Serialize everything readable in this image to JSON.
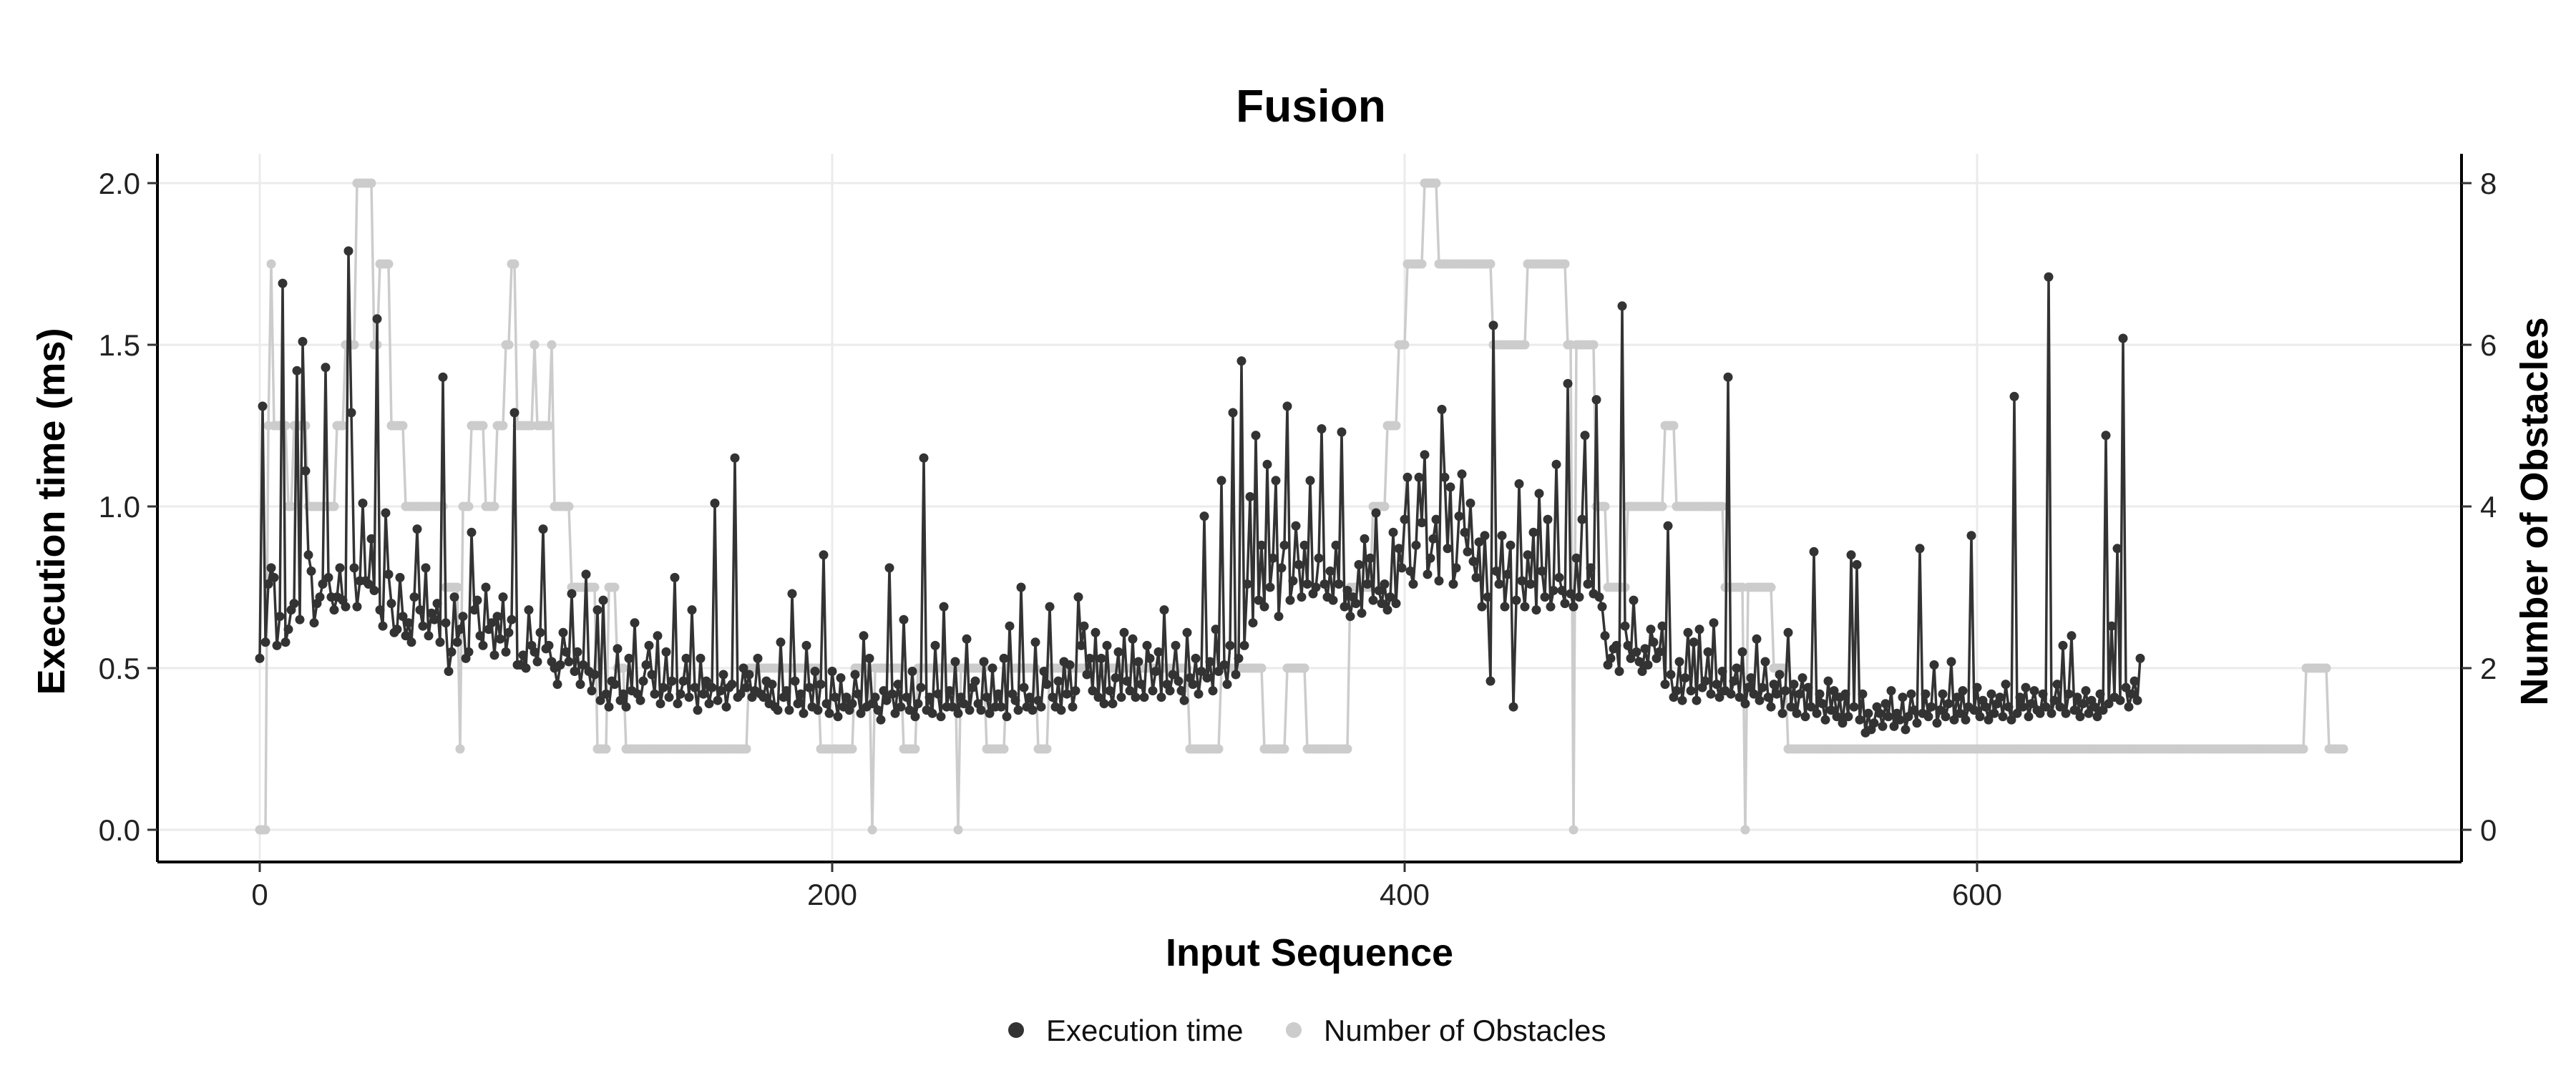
{
  "chart_data": {
    "type": "line",
    "title": "Fusion",
    "xlabel": "Input Sequence",
    "ylabel": "Execution time (ms)",
    "y2label": "Number of Obstacles",
    "xlim": [
      0,
      733
    ],
    "ylim": [
      0,
      2.0
    ],
    "y2lim": [
      0,
      8
    ],
    "x_ticks": [
      0,
      200,
      400,
      600
    ],
    "y_ticks": [
      0.0,
      0.5,
      1.0,
      1.5,
      2.0
    ],
    "y_tick_labels": [
      "0.0",
      "0.5",
      "1.0",
      "1.5",
      "2.0"
    ],
    "y2_ticks": [
      0,
      2,
      4,
      6,
      8
    ],
    "grid": true,
    "legend_position": "bottom",
    "colors": {
      "execution_time": "#333333",
      "obstacles": "#cccccc",
      "grid": "#ebebeb",
      "axis": "#000000"
    },
    "series": [
      {
        "name": "Execution time",
        "axis": "left",
        "x_start": 0,
        "x_step": 1,
        "values": [
          0.53,
          1.31,
          0.58,
          0.76,
          0.81,
          0.78,
          0.57,
          0.66,
          1.69,
          0.58,
          0.62,
          0.68,
          0.7,
          1.42,
          0.65,
          1.51,
          1.11,
          0.85,
          0.8,
          0.64,
          0.7,
          0.72,
          0.76,
          1.43,
          0.78,
          0.72,
          0.68,
          0.72,
          0.81,
          0.71,
          0.69,
          1.79,
          1.29,
          0.81,
          0.69,
          0.77,
          1.01,
          0.77,
          0.76,
          0.9,
          0.74,
          1.58,
          0.68,
          0.63,
          0.98,
          0.79,
          0.7,
          0.61,
          0.62,
          0.78,
          0.66,
          0.6,
          0.64,
          0.58,
          0.72,
          0.93,
          0.68,
          0.63,
          0.81,
          0.6,
          0.67,
          0.65,
          0.7,
          0.58,
          1.4,
          0.64,
          0.49,
          0.55,
          0.72,
          0.58,
          0.62,
          0.66,
          0.53,
          0.55,
          0.92,
          0.68,
          0.71,
          0.6,
          0.57,
          0.75,
          0.62,
          0.64,
          0.54,
          0.66,
          0.59,
          0.72,
          0.55,
          0.61,
          0.65,
          1.29,
          0.51,
          0.51,
          0.54,
          0.5,
          0.68,
          0.57,
          0.55,
          0.52,
          0.61,
          0.93,
          0.56,
          0.57,
          0.52,
          0.5,
          0.45,
          0.51,
          0.61,
          0.55,
          0.52,
          0.73,
          0.49,
          0.55,
          0.45,
          0.51,
          0.79,
          0.49,
          0.43,
          0.48,
          0.68,
          0.4,
          0.71,
          0.42,
          0.38,
          0.46,
          0.45,
          0.56,
          0.4,
          0.42,
          0.38,
          0.53,
          0.43,
          0.64,
          0.42,
          0.4,
          0.46,
          0.51,
          0.57,
          0.48,
          0.42,
          0.6,
          0.39,
          0.44,
          0.55,
          0.41,
          0.46,
          0.78,
          0.39,
          0.42,
          0.46,
          0.53,
          0.41,
          0.68,
          0.44,
          0.37,
          0.53,
          0.42,
          0.46,
          0.39,
          0.44,
          1.01,
          0.4,
          0.43,
          0.48,
          0.38,
          0.44,
          0.45,
          1.15,
          0.41,
          0.42,
          0.5,
          0.44,
          0.48,
          0.41,
          0.43,
          0.53,
          0.42,
          0.41,
          0.46,
          0.39,
          0.45,
          0.38,
          0.37,
          0.58,
          0.41,
          0.43,
          0.37,
          0.73,
          0.46,
          0.39,
          0.42,
          0.36,
          0.57,
          0.44,
          0.38,
          0.49,
          0.37,
          0.45,
          0.85,
          0.39,
          0.36,
          0.49,
          0.41,
          0.35,
          0.47,
          0.38,
          0.41,
          0.37,
          0.39,
          0.48,
          0.42,
          0.36,
          0.6,
          0.38,
          0.53,
          0.39,
          0.41,
          0.37,
          0.34,
          0.43,
          0.4,
          0.81,
          0.42,
          0.36,
          0.45,
          0.38,
          0.65,
          0.41,
          0.37,
          0.49,
          0.35,
          0.39,
          0.44,
          1.15,
          0.37,
          0.41,
          0.36,
          0.57,
          0.42,
          0.35,
          0.69,
          0.38,
          0.43,
          0.38,
          0.52,
          0.36,
          0.41,
          0.39,
          0.59,
          0.37,
          0.44,
          0.46,
          0.39,
          0.37,
          0.52,
          0.41,
          0.36,
          0.5,
          0.38,
          0.42,
          0.38,
          0.53,
          0.35,
          0.63,
          0.42,
          0.4,
          0.37,
          0.75,
          0.44,
          0.38,
          0.41,
          0.37,
          0.58,
          0.4,
          0.38,
          0.49,
          0.45,
          0.69,
          0.41,
          0.38,
          0.46,
          0.37,
          0.52,
          0.42,
          0.51,
          0.38,
          0.43,
          0.72,
          0.57,
          0.63,
          0.48,
          0.53,
          0.43,
          0.61,
          0.41,
          0.53,
          0.39,
          0.57,
          0.43,
          0.39,
          0.47,
          0.55,
          0.41,
          0.61,
          0.46,
          0.43,
          0.59,
          0.41,
          0.52,
          0.45,
          0.41,
          0.57,
          0.53,
          0.43,
          0.49,
          0.55,
          0.41,
          0.68,
          0.45,
          0.43,
          0.48,
          0.57,
          0.46,
          0.43,
          0.4,
          0.61,
          0.47,
          0.45,
          0.53,
          0.42,
          0.49,
          0.97,
          0.47,
          0.52,
          0.43,
          0.62,
          0.49,
          1.08,
          0.51,
          0.45,
          0.57,
          1.29,
          0.48,
          0.53,
          1.45,
          0.57,
          0.76,
          1.03,
          0.64,
          1.22,
          0.71,
          0.88,
          0.69,
          1.13,
          0.75,
          0.84,
          1.08,
          0.66,
          0.81,
          0.88,
          1.31,
          0.71,
          0.77,
          0.94,
          0.82,
          0.72,
          0.88,
          0.76,
          1.08,
          0.73,
          0.75,
          0.84,
          1.24,
          0.76,
          0.72,
          0.8,
          0.71,
          0.88,
          0.76,
          1.23,
          0.69,
          0.74,
          0.66,
          0.72,
          0.7,
          0.82,
          0.67,
          0.9,
          0.76,
          0.84,
          0.71,
          0.98,
          0.74,
          0.7,
          0.76,
          0.68,
          0.72,
          0.92,
          0.7,
          0.87,
          0.81,
          0.96,
          1.09,
          0.8,
          0.76,
          0.88,
          1.09,
          0.95,
          1.16,
          0.79,
          0.84,
          0.9,
          0.96,
          0.77,
          1.3,
          1.09,
          0.87,
          1.06,
          0.76,
          0.81,
          0.97,
          1.1,
          0.92,
          0.86,
          1.01,
          0.83,
          0.78,
          0.89,
          0.69,
          0.91,
          0.72,
          0.46,
          1.56,
          0.8,
          0.76,
          0.91,
          0.69,
          0.79,
          0.88,
          0.38,
          0.71,
          1.07,
          0.77,
          0.69,
          0.85,
          0.76,
          0.92,
          0.68,
          1.04,
          0.8,
          0.72,
          0.96,
          0.69,
          0.74,
          1.13,
          0.78,
          0.74,
          0.7,
          1.38,
          0.73,
          0.69,
          0.84,
          0.72,
          0.96,
          1.22,
          0.76,
          0.81,
          0.73,
          1.33,
          0.72,
          0.69,
          0.6,
          0.51,
          0.53,
          0.56,
          0.57,
          0.49,
          1.62,
          0.63,
          0.57,
          0.53,
          0.71,
          0.55,
          0.52,
          0.49,
          0.56,
          0.51,
          0.62,
          0.58,
          0.53,
          0.55,
          0.63,
          0.45,
          0.94,
          0.48,
          0.41,
          0.43,
          0.52,
          0.4,
          0.47,
          0.61,
          0.43,
          0.58,
          0.4,
          0.62,
          0.44,
          0.46,
          0.55,
          0.42,
          0.64,
          0.45,
          0.41,
          0.49,
          0.43,
          1.4,
          0.42,
          0.46,
          0.5,
          0.41,
          0.55,
          0.39,
          0.44,
          0.47,
          0.42,
          0.59,
          0.4,
          0.44,
          0.52,
          0.41,
          0.38,
          0.45,
          0.42,
          0.48,
          0.36,
          0.43,
          0.61,
          0.38,
          0.45,
          0.36,
          0.42,
          0.47,
          0.35,
          0.44,
          0.38,
          0.86,
          0.36,
          0.42,
          0.39,
          0.34,
          0.46,
          0.37,
          0.43,
          0.35,
          0.41,
          0.33,
          0.42,
          0.35,
          0.85,
          0.38,
          0.82,
          0.34,
          0.42,
          0.3,
          0.36,
          0.31,
          0.33,
          0.38,
          0.36,
          0.32,
          0.39,
          0.35,
          0.43,
          0.32,
          0.36,
          0.34,
          0.41,
          0.31,
          0.35,
          0.42,
          0.37,
          0.33,
          0.87,
          0.36,
          0.42,
          0.35,
          0.38,
          0.51,
          0.33,
          0.37,
          0.42,
          0.35,
          0.39,
          0.52,
          0.34,
          0.41,
          0.36,
          0.43,
          0.34,
          0.38,
          0.91,
          0.37,
          0.44,
          0.35,
          0.4,
          0.38,
          0.34,
          0.42,
          0.36,
          0.39,
          0.41,
          0.35,
          0.45,
          0.38,
          0.34,
          1.34,
          0.36,
          0.41,
          0.38,
          0.44,
          0.35,
          0.39,
          0.43,
          0.37,
          0.36,
          0.42,
          0.38,
          1.71,
          0.36,
          0.4,
          0.45,
          0.38,
          0.57,
          0.36,
          0.42,
          0.6,
          0.37,
          0.41,
          0.35,
          0.39,
          0.43,
          0.36,
          0.4,
          0.38,
          0.35,
          0.42,
          0.37,
          1.22,
          0.39,
          0.63,
          0.41,
          0.87,
          0.4,
          1.52,
          0.44,
          0.38,
          0.42,
          0.46,
          0.4,
          0.53
        ]
      },
      {
        "name": "Number of Obstacles",
        "axis": "right",
        "segments": [
          {
            "from": 0,
            "to": 2,
            "value": 0
          },
          {
            "from": 3,
            "to": 3,
            "value": 5
          },
          {
            "from": 4,
            "to": 4,
            "value": 7
          },
          {
            "from": 5,
            "to": 9,
            "value": 5
          },
          {
            "from": 10,
            "to": 11,
            "value": 4
          },
          {
            "from": 12,
            "to": 16,
            "value": 5
          },
          {
            "from": 17,
            "to": 26,
            "value": 4
          },
          {
            "from": 27,
            "to": 29,
            "value": 5
          },
          {
            "from": 30,
            "to": 33,
            "value": 6
          },
          {
            "from": 34,
            "to": 39,
            "value": 8
          },
          {
            "from": 40,
            "to": 41,
            "value": 6
          },
          {
            "from": 42,
            "to": 45,
            "value": 7
          },
          {
            "from": 46,
            "to": 50,
            "value": 5
          },
          {
            "from": 51,
            "to": 64,
            "value": 4
          },
          {
            "from": 65,
            "to": 69,
            "value": 3
          },
          {
            "from": 70,
            "to": 70,
            "value": 1
          },
          {
            "from": 71,
            "to": 73,
            "value": 4
          },
          {
            "from": 74,
            "to": 78,
            "value": 5
          },
          {
            "from": 79,
            "to": 82,
            "value": 4
          },
          {
            "from": 83,
            "to": 85,
            "value": 5
          },
          {
            "from": 86,
            "to": 87,
            "value": 6
          },
          {
            "from": 88,
            "to": 89,
            "value": 7
          },
          {
            "from": 90,
            "to": 95,
            "value": 5
          },
          {
            "from": 96,
            "to": 96,
            "value": 6
          },
          {
            "from": 97,
            "to": 101,
            "value": 5
          },
          {
            "from": 102,
            "to": 102,
            "value": 6
          },
          {
            "from": 103,
            "to": 108,
            "value": 4
          },
          {
            "from": 109,
            "to": 117,
            "value": 3
          },
          {
            "from": 118,
            "to": 121,
            "value": 1
          },
          {
            "from": 122,
            "to": 124,
            "value": 3
          },
          {
            "from": 125,
            "to": 127,
            "value": 2
          },
          {
            "from": 128,
            "to": 170,
            "value": 1
          },
          {
            "from": 171,
            "to": 195,
            "value": 2
          },
          {
            "from": 196,
            "to": 207,
            "value": 1
          },
          {
            "from": 208,
            "to": 213,
            "value": 2
          },
          {
            "from": 214,
            "to": 214,
            "value": 0
          },
          {
            "from": 215,
            "to": 224,
            "value": 2
          },
          {
            "from": 225,
            "to": 229,
            "value": 1
          },
          {
            "from": 230,
            "to": 243,
            "value": 2
          },
          {
            "from": 244,
            "to": 244,
            "value": 0
          },
          {
            "from": 245,
            "to": 253,
            "value": 2
          },
          {
            "from": 254,
            "to": 260,
            "value": 1
          },
          {
            "from": 261,
            "to": 271,
            "value": 2
          },
          {
            "from": 272,
            "to": 275,
            "value": 1
          },
          {
            "from": 276,
            "to": 324,
            "value": 2
          },
          {
            "from": 325,
            "to": 335,
            "value": 1
          },
          {
            "from": 336,
            "to": 350,
            "value": 2
          },
          {
            "from": 351,
            "to": 358,
            "value": 1
          },
          {
            "from": 359,
            "to": 365,
            "value": 2
          },
          {
            "from": 366,
            "to": 380,
            "value": 1
          },
          {
            "from": 381,
            "to": 388,
            "value": 3
          },
          {
            "from": 389,
            "to": 393,
            "value": 4
          },
          {
            "from": 394,
            "to": 397,
            "value": 5
          },
          {
            "from": 398,
            "to": 400,
            "value": 6
          },
          {
            "from": 401,
            "to": 406,
            "value": 7
          },
          {
            "from": 407,
            "to": 411,
            "value": 8
          },
          {
            "from": 412,
            "to": 430,
            "value": 7
          },
          {
            "from": 431,
            "to": 442,
            "value": 6
          },
          {
            "from": 443,
            "to": 456,
            "value": 7
          },
          {
            "from": 457,
            "to": 458,
            "value": 6
          },
          {
            "from": 459,
            "to": 459,
            "value": 0
          },
          {
            "from": 460,
            "to": 466,
            "value": 6
          },
          {
            "from": 467,
            "to": 470,
            "value": 4
          },
          {
            "from": 471,
            "to": 477,
            "value": 3
          },
          {
            "from": 478,
            "to": 490,
            "value": 4
          },
          {
            "from": 491,
            "to": 494,
            "value": 5
          },
          {
            "from": 495,
            "to": 511,
            "value": 4
          },
          {
            "from": 512,
            "to": 518,
            "value": 3
          },
          {
            "from": 519,
            "to": 519,
            "value": 0
          },
          {
            "from": 520,
            "to": 528,
            "value": 3
          },
          {
            "from": 529,
            "to": 533,
            "value": 2
          },
          {
            "from": 534,
            "to": 714,
            "value": 1
          },
          {
            "from": 715,
            "to": 722,
            "value": 2
          },
          {
            "from": 723,
            "to": 728,
            "value": 1
          }
        ]
      }
    ]
  }
}
